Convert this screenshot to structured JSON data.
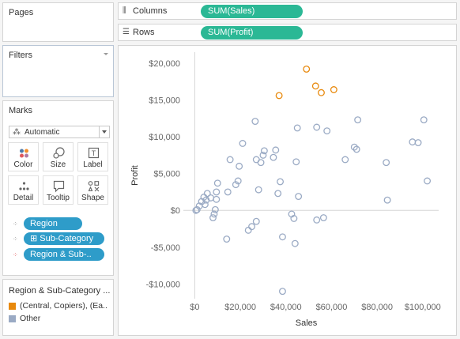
{
  "pages": {
    "title": "Pages"
  },
  "filters": {
    "title": "Filters"
  },
  "marks": {
    "title": "Marks",
    "mark_type": {
      "label": "Automatic",
      "icon": "automatic-mark-icon"
    },
    "buttons": [
      {
        "label": "Color",
        "icon": "color-icon"
      },
      {
        "label": "Size",
        "icon": "size-icon"
      },
      {
        "label": "Label",
        "icon": "label-icon"
      },
      {
        "label": "Detail",
        "icon": "detail-icon"
      },
      {
        "label": "Tooltip",
        "icon": "tooltip-icon"
      },
      {
        "label": "Shape",
        "icon": "shape-icon"
      }
    ],
    "fields": [
      {
        "label": "Region",
        "icon": "detail-icon"
      },
      {
        "label": "⊞ Sub-Category",
        "icon": "detail-icon"
      },
      {
        "label": "Region & Sub-..",
        "icon": "color-icon"
      }
    ]
  },
  "legend": {
    "title": "Region & Sub-Category ...",
    "items": [
      {
        "label": "(Central, Copiers), (Ea..",
        "color": "#e8890c"
      },
      {
        "label": "Other",
        "color": "#9aaac4"
      }
    ]
  },
  "shelves": {
    "columns": {
      "label": "Columns",
      "pill": "SUM(Sales)"
    },
    "rows": {
      "label": "Rows",
      "pill": "SUM(Profit)"
    }
  },
  "chart_data": {
    "type": "scatter",
    "xlabel": "Sales",
    "ylabel": "Profit",
    "xlim": [
      -5000,
      107000
    ],
    "ylim": [
      -12000,
      21500
    ],
    "x_ticks": [
      {
        "v": 0,
        "l": "$0"
      },
      {
        "v": 20000,
        "l": "$20,000"
      },
      {
        "v": 40000,
        "l": "$40,000"
      },
      {
        "v": 60000,
        "l": "$60,000"
      },
      {
        "v": 80000,
        "l": "$80,000"
      },
      {
        "v": 100000,
        "l": "$100,000"
      }
    ],
    "y_ticks": [
      {
        "v": -10000,
        "l": "-$10,000"
      },
      {
        "v": -5000,
        "l": "-$5,000"
      },
      {
        "v": 0,
        "l": "$0"
      },
      {
        "v": 5000,
        "l": "$5,000"
      },
      {
        "v": 10000,
        "l": "$10,000"
      },
      {
        "v": 15000,
        "l": "$15,000"
      },
      {
        "v": 20000,
        "l": "$20,000"
      }
    ],
    "series": [
      {
        "name": "(Central, Copiers), (Ea..",
        "color": "#e8890c",
        "points": [
          [
            49000,
            19200
          ],
          [
            53000,
            16900
          ],
          [
            55500,
            16000
          ],
          [
            61000,
            16400
          ],
          [
            37000,
            15600
          ]
        ]
      },
      {
        "name": "Other",
        "color": "#9aaac4",
        "points": [
          [
            100500,
            12300
          ],
          [
            98000,
            9200
          ],
          [
            95500,
            9300
          ],
          [
            102000,
            4000
          ],
          [
            84000,
            6500
          ],
          [
            84500,
            1400
          ],
          [
            71500,
            12300
          ],
          [
            70000,
            8600
          ],
          [
            71000,
            8300
          ],
          [
            66000,
            6900
          ],
          [
            58000,
            10800
          ],
          [
            53500,
            11300
          ],
          [
            45000,
            11200
          ],
          [
            44500,
            6600
          ],
          [
            45500,
            1900
          ],
          [
            53500,
            -1300
          ],
          [
            56500,
            -1000
          ],
          [
            42500,
            -500
          ],
          [
            43500,
            -1100
          ],
          [
            44000,
            -4500
          ],
          [
            38500,
            -3600
          ],
          [
            38500,
            -11000
          ],
          [
            37500,
            3900
          ],
          [
            36500,
            2300
          ],
          [
            35500,
            8200
          ],
          [
            34500,
            7200
          ],
          [
            30500,
            8100
          ],
          [
            30000,
            7500
          ],
          [
            29000,
            6500
          ],
          [
            27000,
            6900
          ],
          [
            26500,
            12100
          ],
          [
            28000,
            2800
          ],
          [
            27000,
            -1500
          ],
          [
            25000,
            -2200
          ],
          [
            23500,
            -2700
          ],
          [
            21000,
            9100
          ],
          [
            19500,
            6000
          ],
          [
            19000,
            4000
          ],
          [
            18000,
            3500
          ],
          [
            15500,
            6900
          ],
          [
            14500,
            2500
          ],
          [
            14000,
            -3900
          ],
          [
            10000,
            3700
          ],
          [
            9500,
            2500
          ],
          [
            9500,
            1500
          ],
          [
            9000,
            100
          ],
          [
            8500,
            -500
          ],
          [
            8000,
            -1000
          ],
          [
            7000,
            1700
          ],
          [
            5500,
            2300
          ],
          [
            5000,
            1400
          ],
          [
            4500,
            800
          ],
          [
            4000,
            1800
          ],
          [
            3000,
            1200
          ],
          [
            2000,
            600
          ],
          [
            1000,
            100
          ],
          [
            500,
            0
          ]
        ]
      }
    ]
  }
}
